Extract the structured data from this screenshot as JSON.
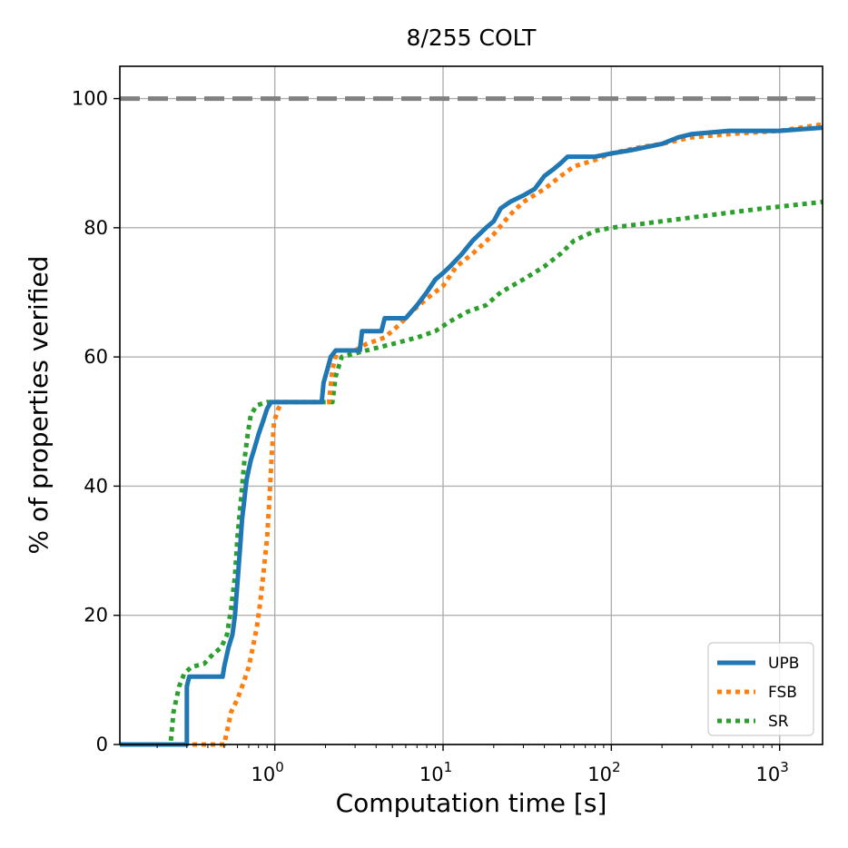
{
  "chart_data": {
    "type": "line",
    "title": "8/255 COLT",
    "xlabel": "Computation time [s]",
    "ylabel": "% of properties verified",
    "xscale": "log",
    "xlim": [
      0.12,
      1800
    ],
    "ylim": [
      0,
      105
    ],
    "x_ticks": [
      {
        "value": 1,
        "base": "10",
        "exp": "0"
      },
      {
        "value": 10,
        "base": "10",
        "exp": "1"
      },
      {
        "value": 100,
        "base": "10",
        "exp": "2"
      },
      {
        "value": 1000,
        "base": "10",
        "exp": "3"
      }
    ],
    "y_ticks": [
      {
        "value": 0,
        "label": "0"
      },
      {
        "value": 20,
        "label": "20"
      },
      {
        "value": 40,
        "label": "40"
      },
      {
        "value": 60,
        "label": "60"
      },
      {
        "value": 80,
        "label": "80"
      },
      {
        "value": 100,
        "label": "100"
      }
    ],
    "grid": true,
    "reference_line": {
      "y": 100,
      "color": "#808080",
      "style": "dashed"
    },
    "legend_position": "lower-right",
    "series": [
      {
        "name": "UPB",
        "color": "#1f77b4",
        "style": "solid",
        "points": [
          [
            0.12,
            0
          ],
          [
            0.3,
            0
          ],
          [
            0.3,
            9
          ],
          [
            0.31,
            10.5
          ],
          [
            0.49,
            10.5
          ],
          [
            0.5,
            12
          ],
          [
            0.53,
            15
          ],
          [
            0.56,
            17
          ],
          [
            0.58,
            20
          ],
          [
            0.6,
            25
          ],
          [
            0.62,
            30
          ],
          [
            0.64,
            35
          ],
          [
            0.66,
            38
          ],
          [
            0.68,
            41
          ],
          [
            0.72,
            44
          ],
          [
            0.76,
            46
          ],
          [
            0.8,
            48
          ],
          [
            0.85,
            50
          ],
          [
            0.9,
            52
          ],
          [
            0.95,
            53
          ],
          [
            1.9,
            53
          ],
          [
            1.95,
            56
          ],
          [
            2.05,
            58
          ],
          [
            2.15,
            60
          ],
          [
            2.3,
            61
          ],
          [
            3.2,
            61
          ],
          [
            3.3,
            64
          ],
          [
            4.3,
            64
          ],
          [
            4.5,
            66
          ],
          [
            6,
            66
          ],
          [
            7,
            68
          ],
          [
            8,
            70
          ],
          [
            9,
            72
          ],
          [
            10,
            73
          ],
          [
            11,
            74
          ],
          [
            13,
            76
          ],
          [
            15,
            78
          ],
          [
            18,
            80
          ],
          [
            20,
            81
          ],
          [
            22,
            83
          ],
          [
            25,
            84
          ],
          [
            30,
            85
          ],
          [
            35,
            86
          ],
          [
            40,
            88
          ],
          [
            45,
            89
          ],
          [
            50,
            90
          ],
          [
            55,
            91
          ],
          [
            80,
            91
          ],
          [
            100,
            91.5
          ],
          [
            130,
            92
          ],
          [
            200,
            93
          ],
          [
            250,
            94
          ],
          [
            300,
            94.5
          ],
          [
            500,
            95
          ],
          [
            1000,
            95
          ],
          [
            1800,
            95.5
          ]
        ]
      },
      {
        "name": "FSB",
        "color": "#ff7f0e",
        "style": "dotted",
        "points": [
          [
            0.12,
            0
          ],
          [
            0.5,
            0
          ],
          [
            0.52,
            2
          ],
          [
            0.55,
            5
          ],
          [
            0.6,
            7
          ],
          [
            0.66,
            10
          ],
          [
            0.7,
            12
          ],
          [
            0.74,
            15
          ],
          [
            0.78,
            18
          ],
          [
            0.82,
            22
          ],
          [
            0.86,
            27
          ],
          [
            0.9,
            32
          ],
          [
            0.93,
            38
          ],
          [
            0.96,
            45
          ],
          [
            0.99,
            50
          ],
          [
            1.05,
            52
          ],
          [
            1.1,
            53
          ],
          [
            2.1,
            53
          ],
          [
            2.2,
            58
          ],
          [
            2.35,
            61
          ],
          [
            3,
            61
          ],
          [
            3.5,
            62
          ],
          [
            4.5,
            63
          ],
          [
            5.5,
            65
          ],
          [
            6.5,
            67
          ],
          [
            8,
            69
          ],
          [
            10,
            71
          ],
          [
            12,
            74
          ],
          [
            15,
            76
          ],
          [
            20,
            79
          ],
          [
            25,
            82
          ],
          [
            30,
            84
          ],
          [
            40,
            86
          ],
          [
            50,
            88
          ],
          [
            60,
            89.5
          ],
          [
            80,
            90.5
          ],
          [
            100,
            91.5
          ],
          [
            150,
            92.5
          ],
          [
            200,
            93
          ],
          [
            300,
            94
          ],
          [
            500,
            94.5
          ],
          [
            1000,
            95
          ],
          [
            1800,
            96
          ]
        ]
      },
      {
        "name": "SR",
        "color": "#2ca02c",
        "style": "dotted",
        "points": [
          [
            0.12,
            0
          ],
          [
            0.24,
            0
          ],
          [
            0.25,
            5
          ],
          [
            0.27,
            9
          ],
          [
            0.29,
            11
          ],
          [
            0.32,
            12
          ],
          [
            0.38,
            12.5
          ],
          [
            0.43,
            14
          ],
          [
            0.48,
            15
          ],
          [
            0.52,
            17
          ],
          [
            0.55,
            21
          ],
          [
            0.58,
            26
          ],
          [
            0.6,
            32
          ],
          [
            0.63,
            38
          ],
          [
            0.66,
            44
          ],
          [
            0.69,
            48
          ],
          [
            0.72,
            51
          ],
          [
            0.78,
            52.5
          ],
          [
            0.9,
            53
          ],
          [
            2.2,
            53
          ],
          [
            2.3,
            57
          ],
          [
            2.5,
            60
          ],
          [
            3.5,
            61
          ],
          [
            5,
            62
          ],
          [
            7,
            63
          ],
          [
            9,
            64
          ],
          [
            11,
            65.5
          ],
          [
            14,
            67
          ],
          [
            18,
            68
          ],
          [
            22,
            70
          ],
          [
            30,
            72
          ],
          [
            40,
            74
          ],
          [
            50,
            76
          ],
          [
            60,
            78
          ],
          [
            80,
            79.5
          ],
          [
            100,
            80
          ],
          [
            200,
            81
          ],
          [
            400,
            82
          ],
          [
            800,
            83
          ],
          [
            1200,
            83.5
          ],
          [
            1800,
            84
          ]
        ]
      }
    ]
  }
}
